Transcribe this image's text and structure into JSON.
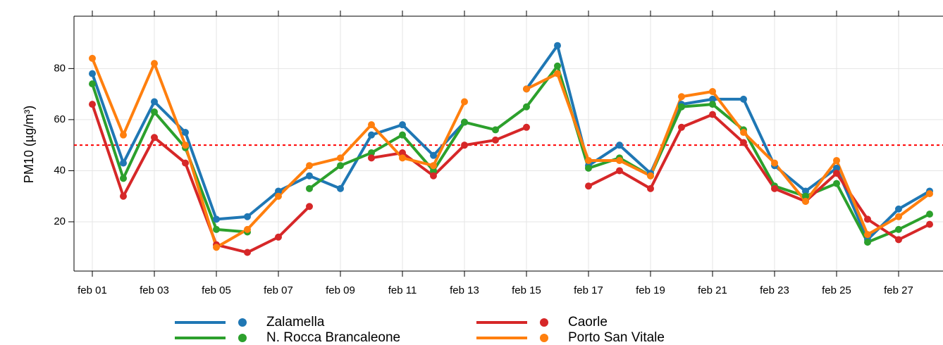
{
  "chart_data": {
    "type": "line",
    "y_label": "PM10 (µg/m³)",
    "categories": [
      "feb 01",
      null,
      "feb 03",
      null,
      "feb 05",
      null,
      "feb 07",
      null,
      "feb 09",
      null,
      "feb 11",
      null,
      "feb 13",
      null,
      "feb 15",
      null,
      "feb 17",
      null,
      "feb 19",
      null,
      "feb 21",
      null,
      "feb 23",
      null,
      "feb 25",
      null,
      "feb 27",
      null
    ],
    "series": [
      {
        "name": "Zalamella",
        "color": "#1f77b4",
        "values": [
          78,
          43,
          67,
          55,
          21,
          22,
          32,
          38,
          33,
          54,
          58,
          46,
          59,
          null,
          72,
          89,
          42,
          50,
          39,
          66,
          68,
          68,
          42,
          32,
          41,
          13,
          25,
          32
        ]
      },
      {
        "name": "N. Rocca Brancaleone",
        "color": "#2ca02c",
        "values": [
          74,
          37,
          63,
          49,
          17,
          16,
          null,
          33,
          42,
          47,
          54,
          40,
          59,
          56,
          65,
          81,
          41,
          45,
          38,
          65,
          66,
          56,
          34,
          30,
          35,
          12,
          17,
          23
        ]
      },
      {
        "name": "Caorle",
        "color": "#d62728",
        "values": [
          66,
          30,
          53,
          43,
          11,
          8,
          14,
          26,
          null,
          45,
          47,
          38,
          50,
          52,
          57,
          null,
          34,
          40,
          33,
          57,
          62,
          51,
          33,
          28,
          39,
          21,
          13,
          19
        ]
      },
      {
        "name": "Porto San Vitale",
        "color": "#ff7f0e",
        "values": [
          84,
          54,
          82,
          50,
          10,
          17,
          30,
          42,
          45,
          58,
          45,
          42,
          67,
          null,
          72,
          78,
          44,
          44,
          38,
          69,
          71,
          55,
          43,
          28,
          44,
          15,
          22,
          31
        ]
      }
    ],
    "reference_line": {
      "value": 50,
      "color": "#ff0000"
    },
    "ylim": [
      0.7,
      100.5
    ],
    "yticks": [
      20,
      40,
      60,
      80
    ],
    "grid": true
  }
}
